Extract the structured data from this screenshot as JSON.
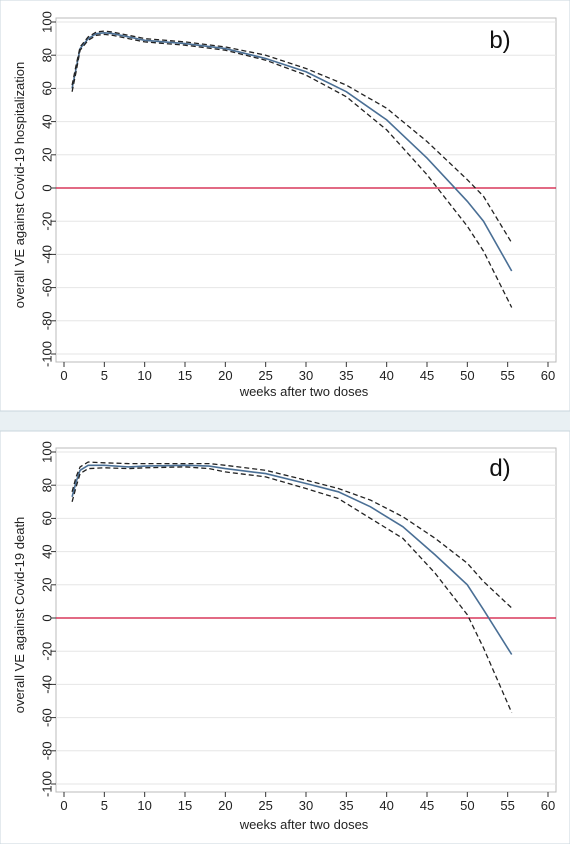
{
  "chart_data": [
    {
      "type": "line",
      "panel_label": "b)",
      "xlabel": "weeks after two doses",
      "ylabel": "overall VE against Covid-19 hospitalization",
      "xlim": [
        0,
        60
      ],
      "ylim": [
        -100,
        100
      ],
      "xticks": [
        0,
        5,
        10,
        15,
        20,
        25,
        30,
        35,
        40,
        45,
        50,
        55,
        60
      ],
      "yticks": [
        -100,
        -80,
        -60,
        -40,
        -20,
        0,
        20,
        40,
        60,
        80,
        100
      ],
      "grid": "horizontal",
      "reference_line": {
        "y": 0,
        "color": "#d0103a"
      },
      "series": [
        {
          "role": "estimate",
          "style": "solid",
          "color": "#4a6f95",
          "x": [
            1,
            1.5,
            2,
            3,
            4,
            5,
            6,
            8,
            10,
            15,
            20,
            25,
            30,
            35,
            40,
            45,
            50,
            52,
            55.5
          ],
          "y": [
            60,
            72,
            84,
            90,
            93,
            93.5,
            93,
            91,
            89,
            87,
            84,
            78,
            70,
            58,
            41,
            18,
            -8,
            -20,
            -50
          ]
        },
        {
          "role": "upper_ci",
          "style": "dashed",
          "color": "#222",
          "x": [
            1,
            1.5,
            2,
            3,
            4,
            5,
            6,
            8,
            10,
            15,
            20,
            25,
            30,
            35,
            40,
            45,
            50,
            52,
            55.5
          ],
          "y": [
            62,
            74,
            85,
            91,
            94,
            94.5,
            94,
            92,
            90,
            88,
            85,
            80,
            72,
            62,
            48,
            28,
            5,
            -5,
            -33
          ]
        },
        {
          "role": "lower_ci",
          "style": "dashed",
          "color": "#222",
          "x": [
            1,
            1.5,
            2,
            3,
            4,
            5,
            6,
            8,
            10,
            15,
            20,
            25,
            30,
            35,
            40,
            45,
            50,
            52,
            55.5
          ],
          "y": [
            58,
            70,
            83,
            89,
            92,
            92.5,
            92,
            90,
            88,
            86,
            83,
            77,
            68,
            55,
            35,
            8,
            -23,
            -38,
            -72
          ]
        }
      ]
    },
    {
      "type": "line",
      "panel_label": "d)",
      "xlabel": "weeks after two doses",
      "ylabel": "overall VE against Covid-19 death",
      "xlim": [
        0,
        60
      ],
      "ylim": [
        -100,
        100
      ],
      "xticks": [
        0,
        5,
        10,
        15,
        20,
        25,
        30,
        35,
        40,
        45,
        50,
        55,
        60
      ],
      "yticks": [
        -100,
        -80,
        -60,
        -40,
        -20,
        0,
        20,
        40,
        60,
        80,
        100
      ],
      "grid": "horizontal",
      "reference_line": {
        "y": 0,
        "color": "#d0103a"
      },
      "series": [
        {
          "role": "estimate",
          "style": "solid",
          "color": "#4a6f95",
          "x": [
            1,
            1.5,
            2,
            3,
            5,
            8,
            10,
            15,
            18,
            20,
            25,
            30,
            34,
            38,
            42,
            46,
            50,
            52,
            55.5
          ],
          "y": [
            73,
            82,
            89,
            92,
            92,
            91,
            91.5,
            92,
            91.5,
            90,
            87,
            81,
            76,
            67,
            55,
            38,
            20,
            5,
            -22
          ]
        },
        {
          "role": "upper_ci",
          "style": "dashed",
          "color": "#222",
          "x": [
            1,
            1.5,
            2,
            3,
            5,
            8,
            10,
            15,
            18,
            20,
            25,
            30,
            34,
            38,
            42,
            46,
            50,
            52,
            55.5
          ],
          "y": [
            76,
            85,
            91,
            94,
            93.5,
            93,
            93,
            93,
            93,
            92,
            89,
            83,
            78,
            71,
            61,
            48,
            33,
            22,
            6
          ]
        },
        {
          "role": "lower_ci",
          "style": "dashed",
          "color": "#222",
          "x": [
            1,
            1.5,
            2,
            3,
            5,
            8,
            10,
            15,
            18,
            20,
            25,
            30,
            34,
            38,
            42,
            46,
            50,
            52,
            55.5
          ],
          "y": [
            70,
            79,
            87,
            90,
            90.5,
            90,
            90.5,
            91,
            90,
            88,
            85,
            78,
            72,
            60,
            48,
            27,
            2,
            -18,
            -57
          ]
        }
      ]
    }
  ]
}
